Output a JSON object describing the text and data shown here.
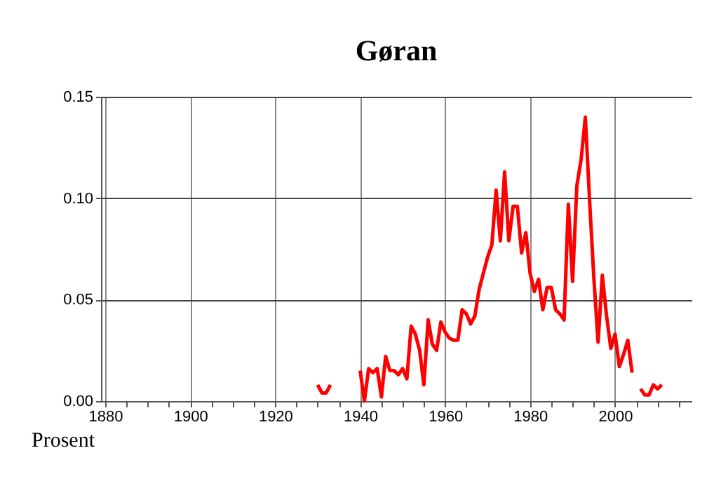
{
  "chart_data": {
    "type": "line",
    "title": "Gøran",
    "ylabel": "Prosent",
    "x": [
      1930,
      1931,
      1932,
      1933,
      1939,
      1940,
      1941,
      1942,
      1943,
      1944,
      1945,
      1946,
      1947,
      1948,
      1949,
      1950,
      1951,
      1952,
      1953,
      1954,
      1955,
      1956,
      1957,
      1958,
      1959,
      1960,
      1961,
      1962,
      1963,
      1964,
      1965,
      1966,
      1967,
      1968,
      1969,
      1970,
      1971,
      1972,
      1973,
      1974,
      1975,
      1976,
      1977,
      1978,
      1979,
      1980,
      1981,
      1982,
      1983,
      1984,
      1985,
      1986,
      1987,
      1988,
      1989,
      1990,
      1991,
      1992,
      1993,
      1994,
      1995,
      1996,
      1997,
      1998,
      1999,
      2000,
      2001,
      2002,
      2003,
      2004,
      2005,
      2006,
      2007,
      2008,
      2009,
      2010,
      2011
    ],
    "series": [
      {
        "color": "#ff0000",
        "values": [
          0.008,
          0.004,
          0.004,
          0.008,
          null,
          0.015,
          0.0,
          0.016,
          0.014,
          0.016,
          0.002,
          0.022,
          0.015,
          0.015,
          0.013,
          0.016,
          0.011,
          0.037,
          0.033,
          0.025,
          0.008,
          0.04,
          0.028,
          0.025,
          0.039,
          0.034,
          0.031,
          0.03,
          0.03,
          0.045,
          0.043,
          0.038,
          0.042,
          0.055,
          0.063,
          0.071,
          0.077,
          0.104,
          0.079,
          0.113,
          0.079,
          0.096,
          0.096,
          0.073,
          0.083,
          0.063,
          0.054,
          0.06,
          0.045,
          0.056,
          0.056,
          0.045,
          0.043,
          0.04,
          0.097,
          0.059,
          0.106,
          0.119,
          0.14,
          0.099,
          0.061,
          0.029,
          0.062,
          0.042,
          0.026,
          0.033,
          0.017,
          0.023,
          0.03,
          0.014,
          null,
          0.006,
          0.003,
          0.003,
          0.008,
          0.006,
          0.008
        ]
      }
    ],
    "xlim": [
      1879,
      2018
    ],
    "xticks": [
      1880,
      {
        "value": 1885,
        "label": null
      },
      {
        "value": 1890,
        "label": null
      },
      {
        "value": 1895,
        "label": null
      },
      1900,
      {
        "value": 1905,
        "label": null
      },
      {
        "value": 1910,
        "label": null
      },
      {
        "value": 1915,
        "label": null
      },
      1920,
      {
        "value": 1925,
        "label": null
      },
      {
        "value": 1930,
        "label": null
      },
      {
        "value": 1935,
        "label": null
      },
      1940,
      {
        "value": 1945,
        "label": null
      },
      {
        "value": 1950,
        "label": null
      },
      {
        "value": 1955,
        "label": null
      },
      1960,
      {
        "value": 1965,
        "label": null
      },
      {
        "value": 1970,
        "label": null
      },
      {
        "value": 1975,
        "label": null
      },
      1980,
      {
        "value": 1985,
        "label": null
      },
      {
        "value": 1990,
        "label": null
      },
      {
        "value": 1995,
        "label": null
      },
      2000,
      {
        "value": 2005,
        "label": null
      },
      {
        "value": 2010,
        "label": null
      },
      {
        "value": 2015,
        "label": null
      }
    ],
    "ylim": [
      0,
      0.15
    ],
    "yticks": [
      {
        "value": 0,
        "label": "0.00"
      },
      {
        "value": 0.05,
        "label": "0.05"
      },
      {
        "value": 0.1,
        "label": "0.10"
      },
      {
        "value": 0.15,
        "label": "0.15"
      }
    ],
    "grid": true,
    "legend": false,
    "marker": "none",
    "line_style": "solid"
  }
}
